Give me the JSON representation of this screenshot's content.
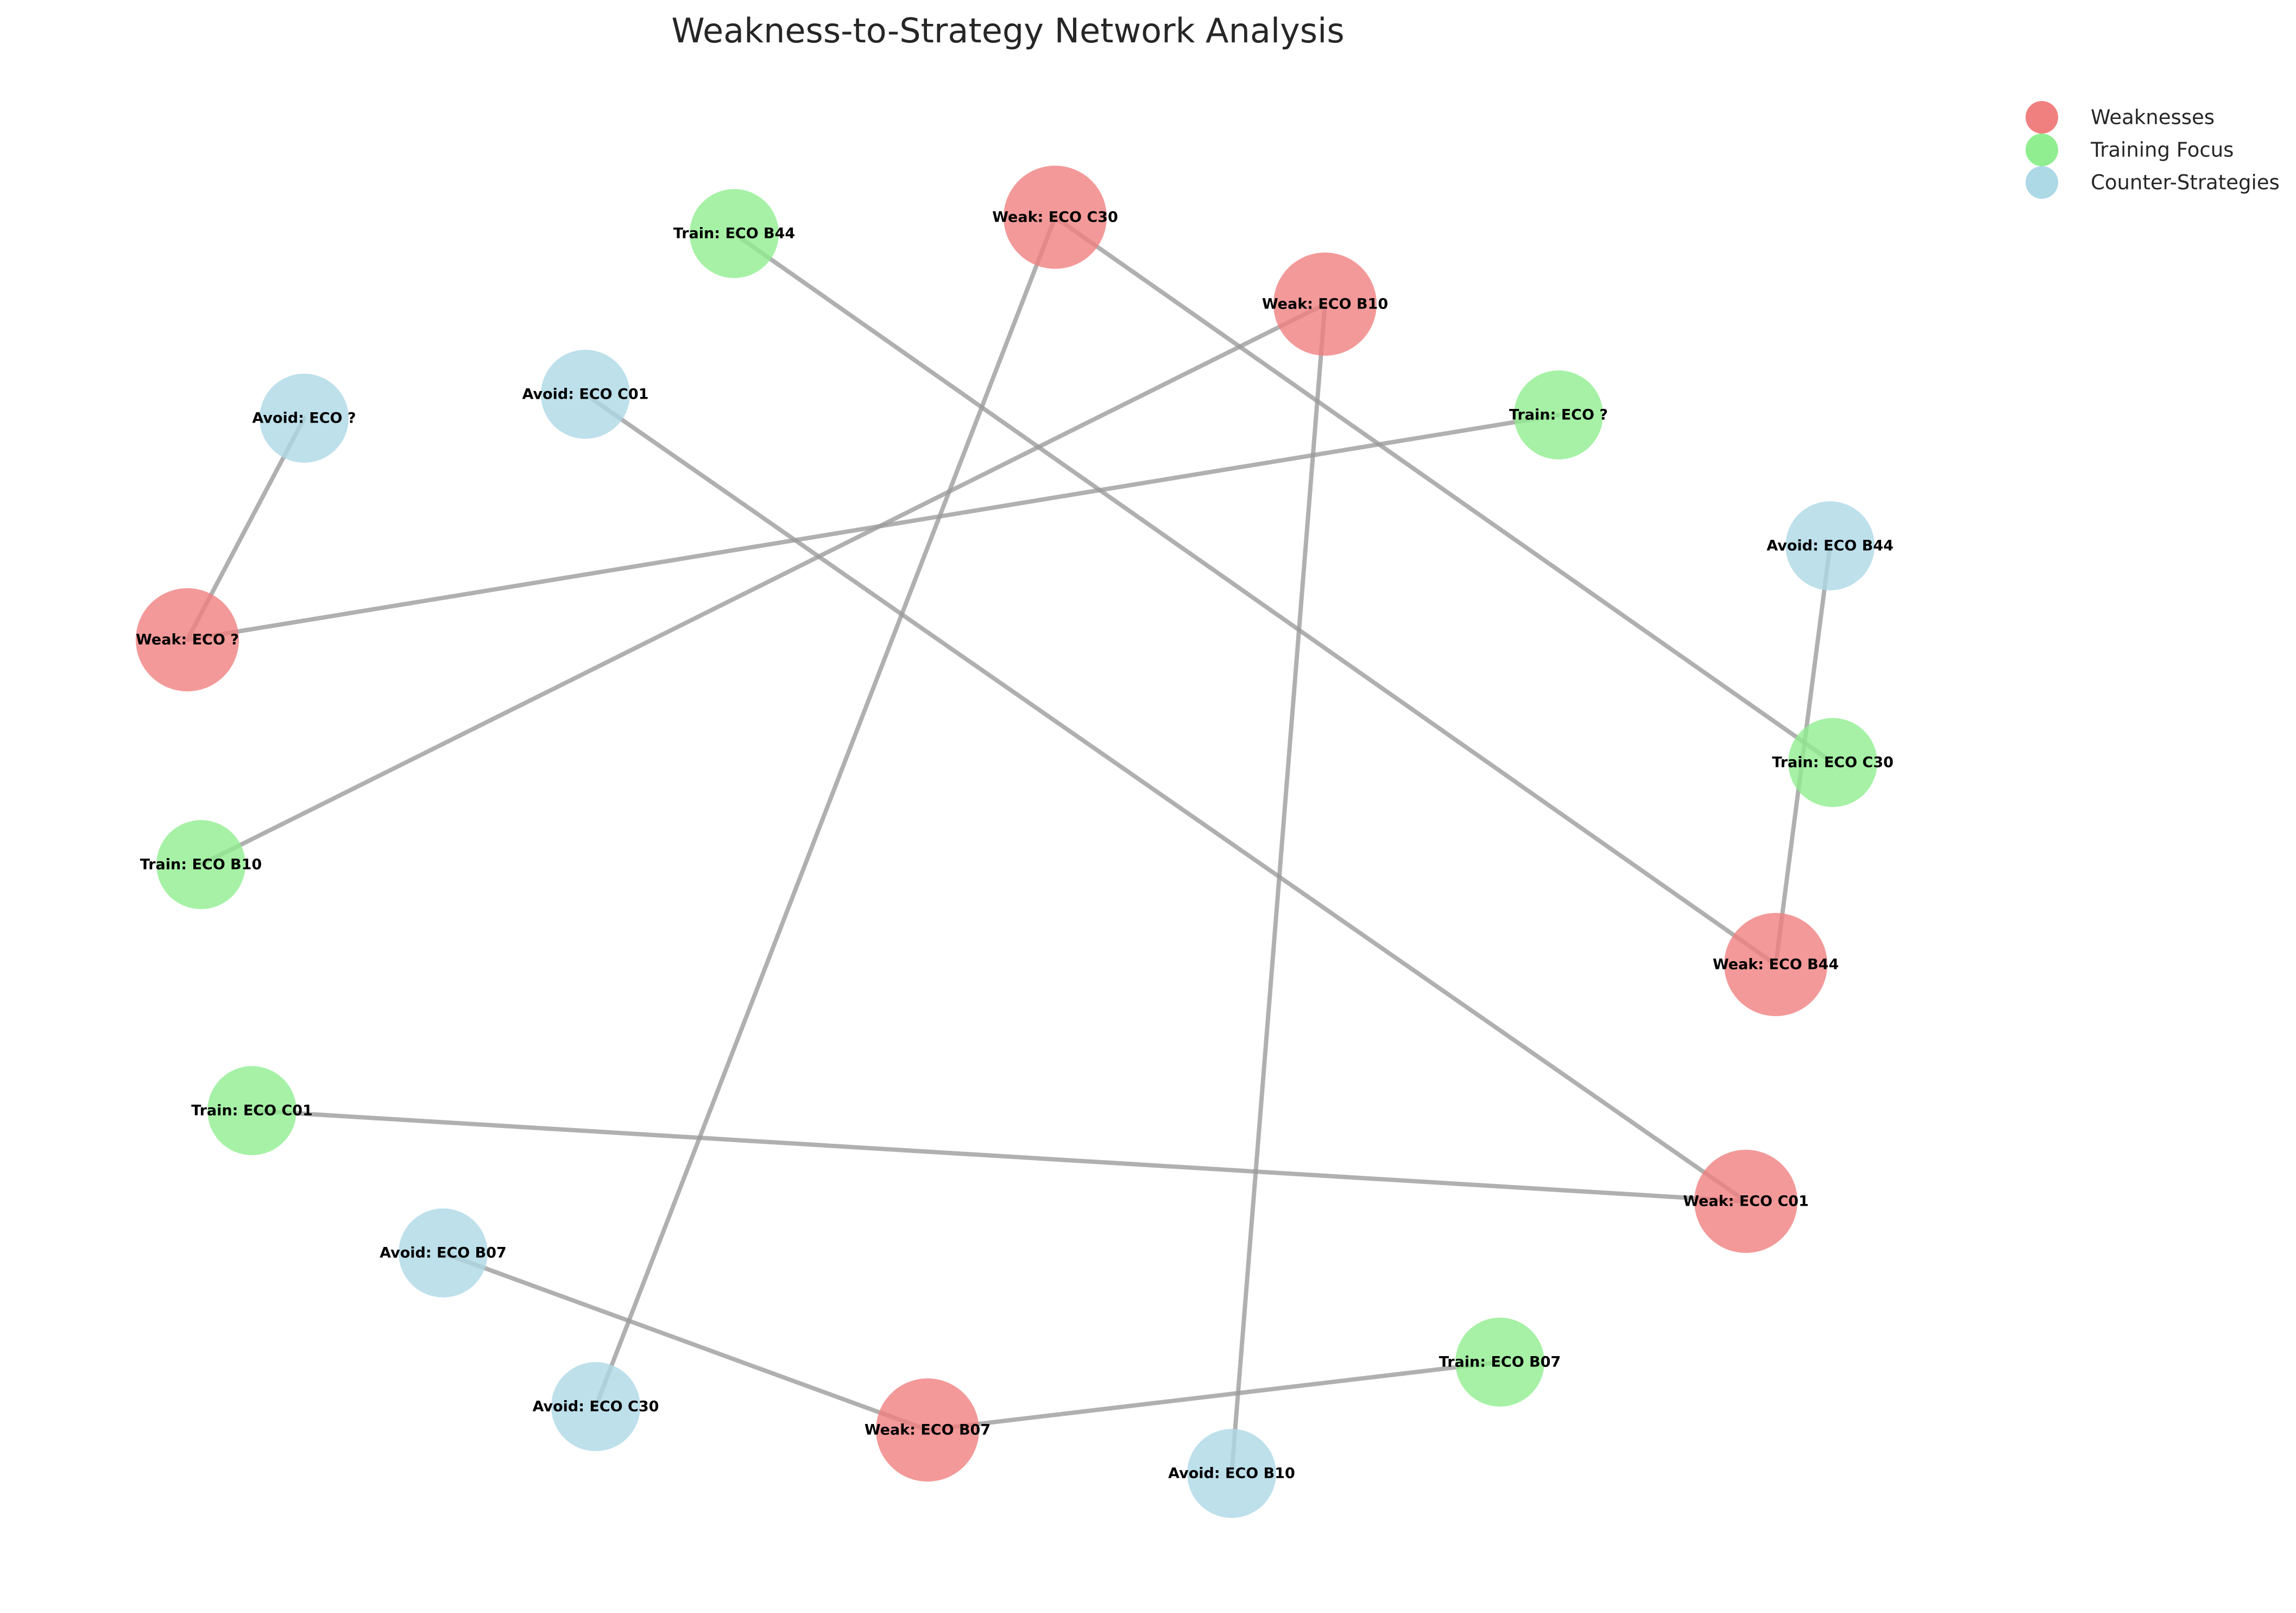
{
  "title": "Weakness-to-Strategy Network Analysis",
  "colors": {
    "weakness": "#f08080",
    "training": "#90ee90",
    "counter": "#add8e6",
    "edge": "#9a9a9a"
  },
  "legend": [
    {
      "key": "weakness",
      "label": "Weaknesses"
    },
    {
      "key": "training",
      "label": "Training Focus"
    },
    {
      "key": "counter",
      "label": "Counter-Strategies"
    }
  ],
  "nodes": [
    {
      "id": "weak-c30",
      "type": "weakness",
      "label": "Weak: ECO C30"
    },
    {
      "id": "weak-b10",
      "type": "weakness",
      "label": "Weak: ECO B10"
    },
    {
      "id": "weak-q",
      "type": "weakness",
      "label": "Weak: ECO ?"
    },
    {
      "id": "weak-b44",
      "type": "weakness",
      "label": "Weak: ECO B44"
    },
    {
      "id": "weak-c01",
      "type": "weakness",
      "label": "Weak: ECO C01"
    },
    {
      "id": "weak-b07",
      "type": "weakness",
      "label": "Weak: ECO B07"
    },
    {
      "id": "train-b44",
      "type": "training",
      "label": "Train: ECO B44"
    },
    {
      "id": "train-q",
      "type": "training",
      "label": "Train: ECO ?"
    },
    {
      "id": "train-c30",
      "type": "training",
      "label": "Train: ECO C30"
    },
    {
      "id": "train-b10",
      "type": "training",
      "label": "Train: ECO B10"
    },
    {
      "id": "train-c01",
      "type": "training",
      "label": "Train: ECO C01"
    },
    {
      "id": "train-b07",
      "type": "training",
      "label": "Train: ECO B07"
    },
    {
      "id": "avoid-q",
      "type": "counter",
      "label": "Avoid: ECO ?"
    },
    {
      "id": "avoid-c01",
      "type": "counter",
      "label": "Avoid: ECO C01"
    },
    {
      "id": "avoid-b44",
      "type": "counter",
      "label": "Avoid: ECO B44"
    },
    {
      "id": "avoid-b07",
      "type": "counter",
      "label": "Avoid: ECO B07"
    },
    {
      "id": "avoid-c30",
      "type": "counter",
      "label": "Avoid: ECO C30"
    },
    {
      "id": "avoid-b10",
      "type": "counter",
      "label": "Avoid: ECO B10"
    }
  ],
  "edges": [
    {
      "source": "weak-q",
      "target": "avoid-q"
    },
    {
      "source": "weak-q",
      "target": "train-q"
    },
    {
      "source": "weak-b10",
      "target": "train-b10"
    },
    {
      "source": "weak-b10",
      "target": "avoid-b10"
    },
    {
      "source": "weak-c30",
      "target": "train-c30"
    },
    {
      "source": "weak-c30",
      "target": "avoid-c30"
    },
    {
      "source": "weak-b44",
      "target": "train-b44"
    },
    {
      "source": "weak-b44",
      "target": "avoid-b44"
    },
    {
      "source": "weak-c01",
      "target": "avoid-c01"
    },
    {
      "source": "weak-c01",
      "target": "train-c01"
    },
    {
      "source": "weak-b07",
      "target": "avoid-b07"
    },
    {
      "source": "weak-b07",
      "target": "train-b07"
    }
  ]
}
